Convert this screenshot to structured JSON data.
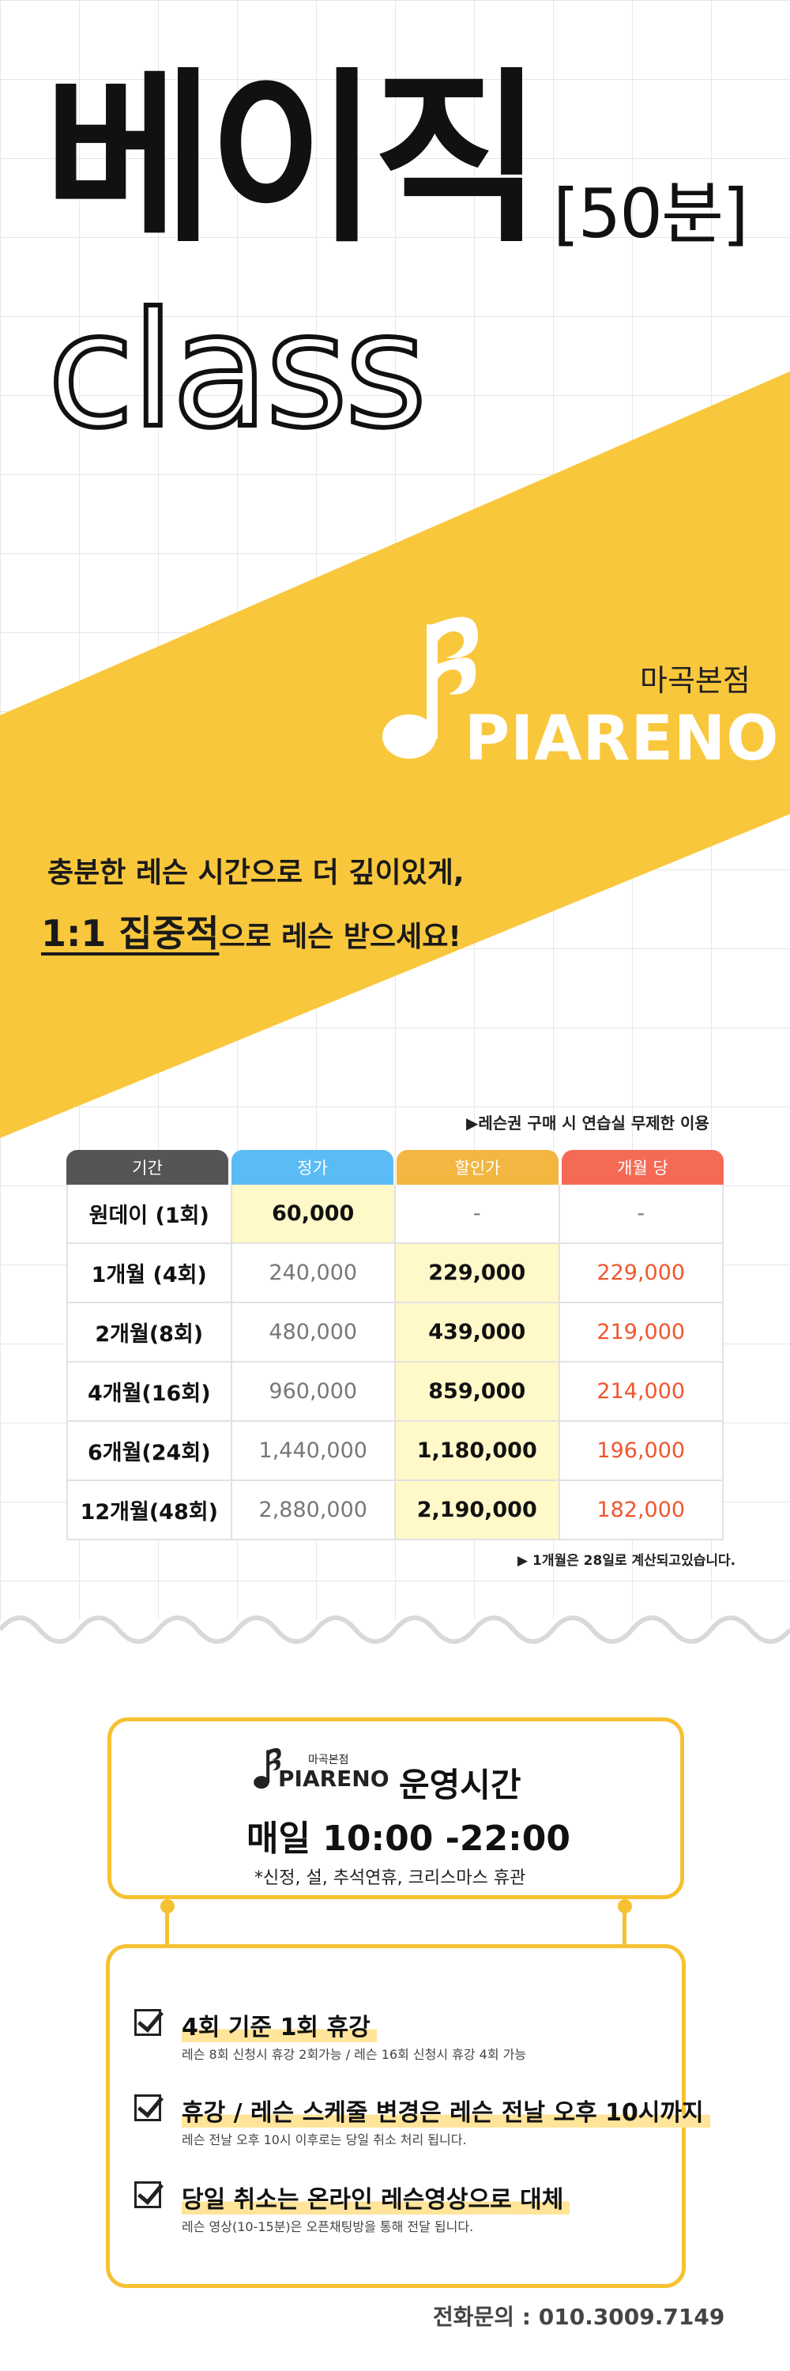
{
  "hero": {
    "title_main": "베이직",
    "title_sub": "[50분]",
    "title_class": "class"
  },
  "brand": {
    "branch": "마곡본점",
    "logo_text": "PIARENO",
    "logo_icon": "music-note-icon"
  },
  "tagline": {
    "line1": "충분한 레슨 시간으로 더 깊이있게,",
    "line2_emphasis": "1:1 집중적",
    "line2_rest": "으로 레슨 받으세요!"
  },
  "pricing": {
    "note_top": "▶레슨권 구매 시 연습실 무제한 이용",
    "headers": [
      "기간",
      "정가",
      "할인가",
      "개월 당"
    ],
    "header_colors": [
      "#555555",
      "#5bbcf5",
      "#f2b641",
      "#f46a55"
    ],
    "rows": [
      {
        "label": "원데이 (1회)",
        "regular": "60,000",
        "discount": "-",
        "monthly": "-"
      },
      {
        "label": "1개월 (4회)",
        "regular": "240,000",
        "discount": "229,000",
        "monthly": "229,000"
      },
      {
        "label": "2개월(8회)",
        "regular": "480,000",
        "discount": "439,000",
        "monthly": "219,000"
      },
      {
        "label": "4개월(16회)",
        "regular": "960,000",
        "discount": "859,000",
        "monthly": "214,000"
      },
      {
        "label": "6개월(24회)",
        "regular": "1,440,000",
        "discount": "1,180,000",
        "monthly": "196,000"
      },
      {
        "label": "12개월(48회)",
        "regular": "2,880,000",
        "discount": "2,190,000",
        "monthly": "182,000"
      }
    ],
    "note_bottom": "▶ 1개월은 28일로 계산되고있습니다."
  },
  "hours": {
    "title": "운영시간",
    "time": "매일 10:00 -22:00",
    "note": "*신정, 설, 추석연휴, 크리스마스 휴관"
  },
  "rules": [
    {
      "title": "4회 기준 1회 휴강",
      "desc": "레슨 8회 신청시 휴강 2회가능 / 레슨 16회 신청시 휴강 4회 가능"
    },
    {
      "title": "휴강 / 레슨 스케줄 변경은 레슨 전날 오후 10시까지",
      "desc": "레슨 전날 오후 10시 이후로는 당일 취소 처리 됩니다."
    },
    {
      "title": "당일 취소는 온라인 레슨영상으로 대체",
      "desc": "레슨 영상(10-15분)은 오픈채팅방을 통해 전달 됩니다."
    }
  ],
  "contact": {
    "phone": "전화문의 : 010.3009.7149"
  },
  "colors": {
    "accent_yellow": "#f9c73c",
    "border_yellow": "#f6c131",
    "highlight_yellow": "#fff8c8",
    "monthly_red": "#f0562e"
  }
}
